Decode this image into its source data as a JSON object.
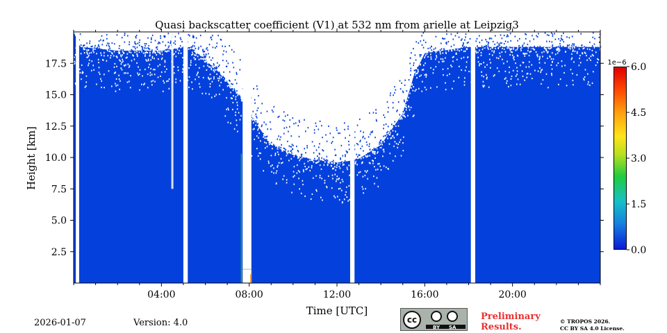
{
  "chart_data": {
    "type": "heatmap",
    "title": "Quasi backscatter coefficient (V1) at 532 nm from arielle at Leipzig3",
    "xlabel": "Time [UTC]",
    "ylabel": "Height [km]",
    "x_range_hours": [
      0,
      24
    ],
    "y_range_km": [
      0,
      20
    ],
    "x_ticks": [
      {
        "hour": 4,
        "label": "04:00"
      },
      {
        "hour": 8,
        "label": "08:00"
      },
      {
        "hour": 12,
        "label": "12:00"
      },
      {
        "hour": 16,
        "label": "16:00"
      },
      {
        "hour": 20,
        "label": "20:00"
      }
    ],
    "y_ticks": [
      {
        "value": 2.5,
        "label": "2.5"
      },
      {
        "value": 5.0,
        "label": "5.0"
      },
      {
        "value": 7.5,
        "label": "7.5"
      },
      {
        "value": 10.0,
        "label": "10.0"
      },
      {
        "value": 12.5,
        "label": "12.5"
      },
      {
        "value": 15.0,
        "label": "15.0"
      },
      {
        "value": 17.5,
        "label": "17.5"
      }
    ],
    "colorbar": {
      "min": 0.0,
      "max": 6.0,
      "exponent_label": "1e−6",
      "ticks": [
        {
          "value": 0.0,
          "label": "0.0"
        },
        {
          "value": 1.5,
          "label": "1.5"
        },
        {
          "value": 3.0,
          "label": "3.0"
        },
        {
          "value": 4.5,
          "label": "4.5"
        },
        {
          "value": 6.0,
          "label": "6.0"
        }
      ]
    },
    "background_color": "#0441dc",
    "data_gaps_hours": [
      [
        0.1,
        0.25
      ],
      [
        5.0,
        5.2
      ],
      [
        7.7,
        8.1
      ],
      [
        12.6,
        12.8
      ],
      [
        18.1,
        18.3
      ]
    ],
    "noise_floor_km": [
      {
        "hour": 0.3,
        "km": 18.8
      },
      {
        "hour": 2.0,
        "km": 18.5
      },
      {
        "hour": 4.0,
        "km": 18.5
      },
      {
        "hour": 5.3,
        "km": 18.8
      },
      {
        "hour": 6.5,
        "km": 17.0
      },
      {
        "hour": 7.5,
        "km": 15.0
      },
      {
        "hour": 8.2,
        "km": 13.0
      },
      {
        "hour": 9.0,
        "km": 11.0
      },
      {
        "hour": 10.0,
        "km": 10.2
      },
      {
        "hour": 11.0,
        "km": 9.8
      },
      {
        "hour": 12.0,
        "km": 9.6
      },
      {
        "hour": 12.5,
        "km": 9.7
      },
      {
        "hour": 13.0,
        "km": 9.9
      },
      {
        "hour": 14.0,
        "km": 11.0
      },
      {
        "hour": 15.0,
        "km": 13.5
      },
      {
        "hour": 15.5,
        "km": 16.5
      },
      {
        "hour": 16.0,
        "km": 18.3
      },
      {
        "hour": 18.0,
        "km": 18.8
      },
      {
        "hour": 20.0,
        "km": 18.8
      },
      {
        "hour": 24.0,
        "km": 18.8
      }
    ]
  },
  "footer": {
    "date": "2026-01-07",
    "version": "Version: 4.0",
    "license_badge": {
      "main": "cc",
      "by": "BY",
      "sa": "SA"
    },
    "preliminary_line1": "Preliminary",
    "preliminary_line2": "Results.",
    "copyright_line1": "© TROPOS 2026.",
    "copyright_line2": "CC BY SA 4.0 License."
  }
}
